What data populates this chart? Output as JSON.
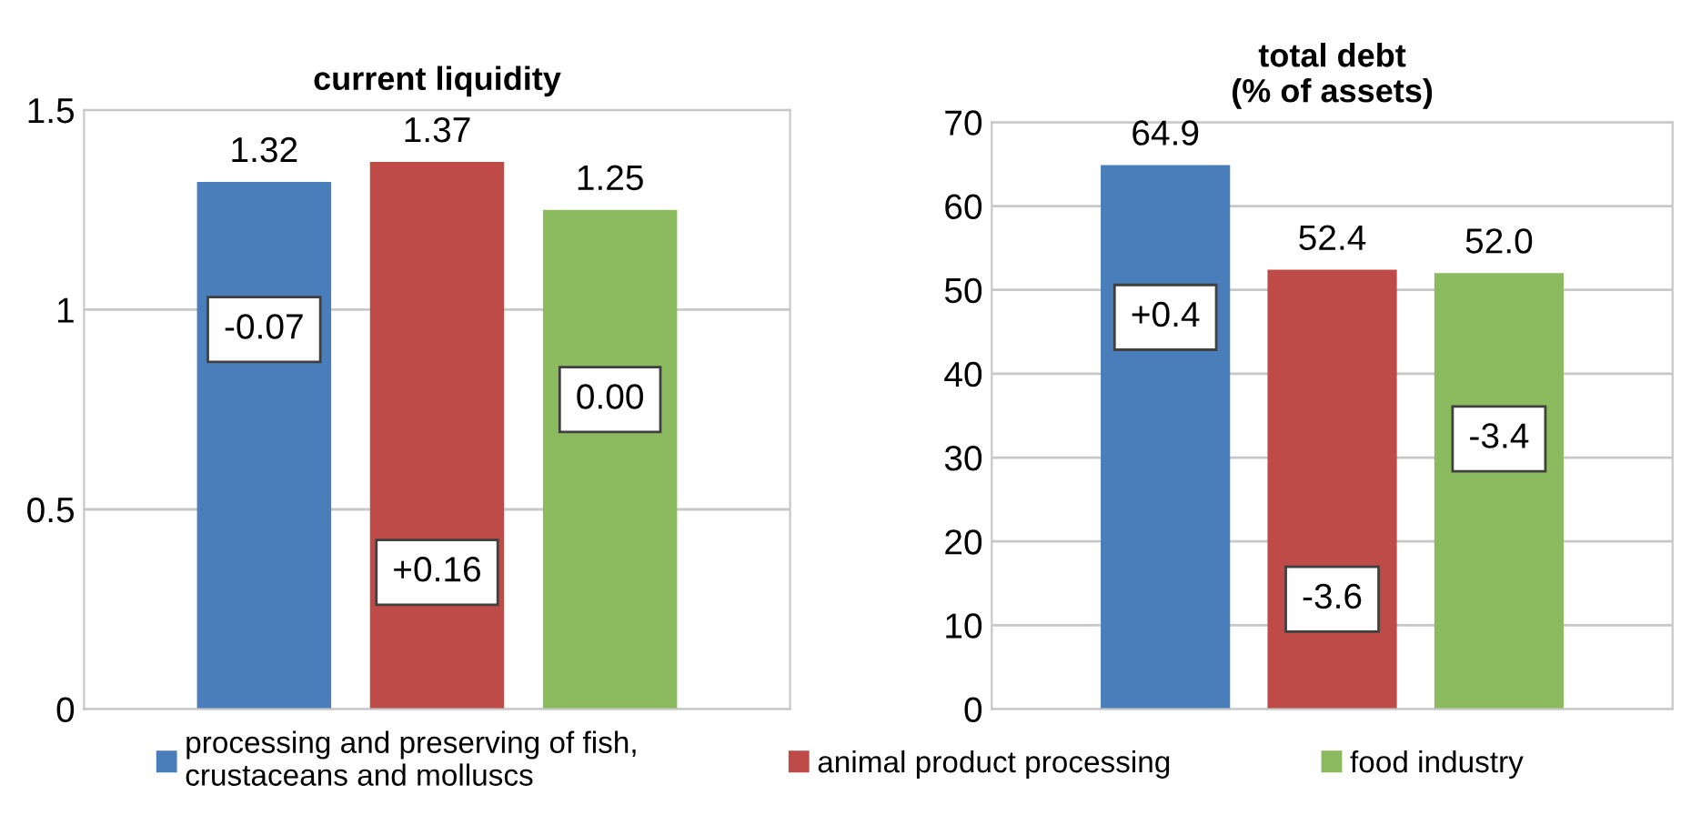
{
  "chart_data": [
    {
      "type": "bar",
      "title": "current liquidity",
      "categories": [
        null
      ],
      "ylim": [
        0,
        1.5
      ],
      "yticks": [
        0,
        0.5,
        1,
        1.5
      ],
      "grid": "y",
      "legend": "bottom",
      "series": [
        {
          "name": "processing and preserving of fish, crustaceans and molluscs",
          "color": "#4a7ebb",
          "values": [
            1.32
          ],
          "value_labels": [
            "1.32"
          ]
        },
        {
          "name": "animal product processing",
          "color": "#be4b48",
          "values": [
            1.37
          ],
          "value_labels": [
            "1.37"
          ]
        },
        {
          "name": "food industry",
          "color": "#8cbb5f",
          "values": [
            1.25
          ],
          "value_labels": [
            "1.25"
          ]
        }
      ],
      "annotations": [
        "-0.07",
        "+0.16",
        "0.00"
      ]
    },
    {
      "type": "bar",
      "title": "total debt",
      "subtitle": "(% of assets)",
      "categories": [
        null
      ],
      "ylim": [
        0,
        70
      ],
      "yticks": [
        0,
        10,
        20,
        30,
        40,
        50,
        60,
        70
      ],
      "grid": "y",
      "legend": "bottom",
      "series": [
        {
          "name": "processing and preserving of fish, crustaceans and molluscs",
          "color": "#4a7ebb",
          "values": [
            64.9
          ],
          "value_labels": [
            "64.9"
          ]
        },
        {
          "name": "animal product processing",
          "color": "#be4b48",
          "values": [
            52.4
          ],
          "value_labels": [
            "52.4"
          ]
        },
        {
          "name": "food industry",
          "color": "#8cbb5f",
          "values": [
            52.0
          ],
          "value_labels": [
            "52.0"
          ]
        }
      ],
      "annotations": [
        "+0.4",
        "-3.6",
        "-3.4"
      ]
    }
  ]
}
